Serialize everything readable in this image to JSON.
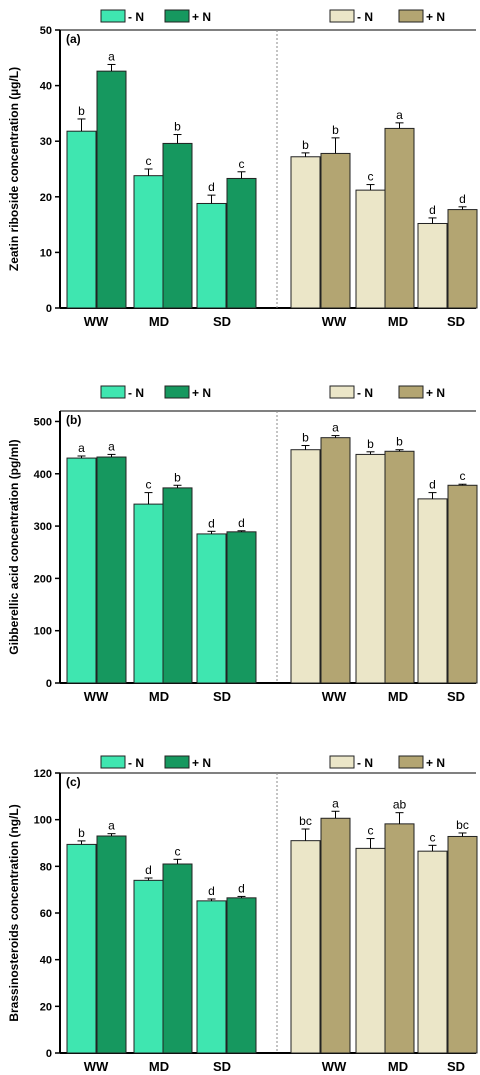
{
  "colors": {
    "left_minus": "#3fe6b0",
    "left_plus": "#16985f",
    "right_minus": "#ebe6c8",
    "right_plus": "#b3a572",
    "bar_stroke": "#222222",
    "divider": "#8a8a8a"
  },
  "legend": {
    "left": [
      "- N",
      "+ N"
    ],
    "right": [
      "- N",
      "+ N"
    ]
  },
  "chart_data": [
    {
      "type": "bar",
      "panel_label": "(a)",
      "ylabel": "Zeatin riboside concentration (µg/L)",
      "ylim": [
        0,
        50
      ],
      "yticks": [
        0,
        10,
        20,
        30,
        40,
        50
      ],
      "grid": false,
      "legend_position": "top",
      "groups": [
        {
          "categories": [
            "WW",
            "MD",
            "SD"
          ],
          "series": [
            {
              "name": "- N",
              "values": [
                31.8,
                23.8,
                18.8
              ],
              "errors": [
                2.2,
                1.2,
                1.5
              ],
              "letters": [
                "b",
                "c",
                "d"
              ]
            },
            {
              "name": "+ N",
              "values": [
                42.6,
                29.6,
                23.3
              ],
              "errors": [
                1.2,
                1.6,
                1.2
              ],
              "letters": [
                "a",
                "b",
                "c"
              ]
            }
          ]
        },
        {
          "categories": [
            "WW",
            "MD",
            "SD"
          ],
          "series": [
            {
              "name": "- N",
              "values": [
                27.2,
                21.2,
                15.2
              ],
              "errors": [
                0.7,
                1.0,
                1.0
              ],
              "letters": [
                "b",
                "c",
                "d"
              ]
            },
            {
              "name": "+ N",
              "values": [
                27.8,
                32.3,
                17.7
              ],
              "errors": [
                2.8,
                1.0,
                0.5
              ],
              "letters": [
                "b",
                "a",
                "d"
              ]
            }
          ]
        }
      ]
    },
    {
      "type": "bar",
      "panel_label": "(b)",
      "ylabel": "Gibberellic acid concentration (pg/ml)",
      "ylim": [
        0,
        520
      ],
      "yticks": [
        0,
        100,
        200,
        300,
        400,
        500
      ],
      "grid": false,
      "legend_position": "top",
      "groups": [
        {
          "categories": [
            "WW",
            "MD",
            "SD"
          ],
          "series": [
            {
              "name": "- N",
              "values": [
                430,
                342,
                285
              ],
              "errors": [
                4,
                22,
                5
              ],
              "letters": [
                "a",
                "c",
                "d"
              ]
            },
            {
              "name": "+ N",
              "values": [
                432,
                373,
                289
              ],
              "errors": [
                5,
                5,
                2
              ],
              "letters": [
                "a",
                "b",
                "d"
              ]
            }
          ]
        },
        {
          "categories": [
            "WW",
            "MD",
            "SD"
          ],
          "series": [
            {
              "name": "- N",
              "values": [
                446,
                437,
                352
              ],
              "errors": [
                8,
                5,
                12
              ],
              "letters": [
                "b",
                "b",
                "d"
              ]
            },
            {
              "name": "+ N",
              "values": [
                469,
                443,
                378
              ],
              "errors": [
                4,
                3,
                2
              ],
              "letters": [
                "a",
                "b",
                "c"
              ]
            }
          ]
        }
      ]
    },
    {
      "type": "bar",
      "panel_label": "(c)",
      "ylabel": "Brassinosteroids concentration (ng/L)",
      "ylim": [
        0,
        120
      ],
      "yticks": [
        0,
        20,
        40,
        60,
        80,
        100,
        120
      ],
      "grid": false,
      "legend_position": "top",
      "groups": [
        {
          "categories": [
            "WW",
            "MD",
            "SD"
          ],
          "series": [
            {
              "name": "- N",
              "values": [
                89.4,
                74.0,
                65.2
              ],
              "errors": [
                1.5,
                1.0,
                0.8
              ],
              "letters": [
                "b",
                "d",
                "d"
              ]
            },
            {
              "name": "+ N",
              "values": [
                93.0,
                81.0,
                66.5
              ],
              "errors": [
                1.0,
                2.0,
                0.6
              ],
              "letters": [
                "a",
                "c",
                "d"
              ]
            }
          ]
        },
        {
          "categories": [
            "WW",
            "MD",
            "SD"
          ],
          "series": [
            {
              "name": "- N",
              "values": [
                91.0,
                87.7,
                86.5
              ],
              "errors": [
                5.0,
                4.2,
                2.5
              ],
              "letters": [
                "bc",
                "c",
                "c"
              ]
            },
            {
              "name": "+ N",
              "values": [
                100.6,
                98.2,
                92.8
              ],
              "errors": [
                3.0,
                4.8,
                1.5
              ],
              "letters": [
                "a",
                "ab",
                "bc"
              ]
            }
          ]
        }
      ]
    }
  ]
}
